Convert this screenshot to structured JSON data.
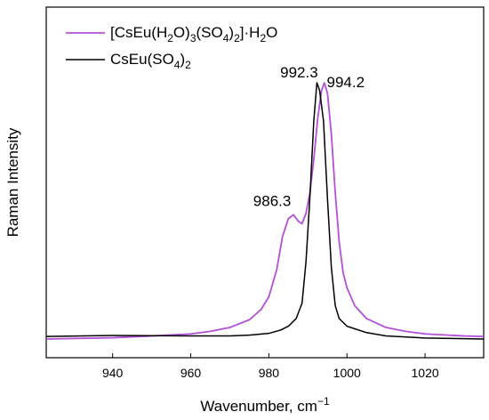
{
  "chart_data": {
    "type": "line",
    "xlabel": "Wavenumber, cm",
    "xlabel_sup": "−1",
    "ylabel": "Raman Intensity",
    "xlim": [
      923,
      1035
    ],
    "ylim": [
      0,
      1.05
    ],
    "xticks": [
      940,
      960,
      980,
      1000,
      1020
    ],
    "y_tick_labels": false,
    "legend_position": "top-left",
    "legend_rows": [
      {
        "series_index": 0,
        "parts": [
          {
            "t": "[CsEu(H"
          },
          {
            "t": "2",
            "s": "sub"
          },
          {
            "t": "O)"
          },
          {
            "t": "3",
            "s": "sub"
          },
          {
            "t": "(SO"
          },
          {
            "t": "4",
            "s": "sub"
          },
          {
            "t": ")"
          },
          {
            "t": "2",
            "s": "sub"
          },
          {
            "t": "]·H"
          },
          {
            "t": "2",
            "s": "sub"
          },
          {
            "t": "O"
          }
        ]
      },
      {
        "series_index": 1,
        "parts": [
          {
            "t": "CsEu(SO"
          },
          {
            "t": "4",
            "s": "sub"
          },
          {
            "t": ")"
          },
          {
            "t": "2",
            "s": "sub"
          }
        ]
      }
    ],
    "series": [
      {
        "name": "[CsEu(H2O)3(SO4)2]·H2O",
        "color": "#b44fd8",
        "points": [
          [
            923,
            0.0
          ],
          [
            940,
            0.005
          ],
          [
            950,
            0.012
          ],
          [
            960,
            0.02
          ],
          [
            965,
            0.03
          ],
          [
            970,
            0.045
          ],
          [
            975,
            0.075
          ],
          [
            978,
            0.115
          ],
          [
            980,
            0.165
          ],
          [
            982,
            0.27
          ],
          [
            983.5,
            0.4
          ],
          [
            985,
            0.47
          ],
          [
            986.3,
            0.485
          ],
          [
            987.5,
            0.46
          ],
          [
            988.5,
            0.45
          ],
          [
            989.5,
            0.49
          ],
          [
            990.5,
            0.57
          ],
          [
            991.5,
            0.7
          ],
          [
            992.5,
            0.86
          ],
          [
            993.5,
            0.97
          ],
          [
            994.2,
            1.0
          ],
          [
            995,
            0.96
          ],
          [
            996,
            0.8
          ],
          [
            997,
            0.57
          ],
          [
            998,
            0.38
          ],
          [
            999,
            0.26
          ],
          [
            1000,
            0.2
          ],
          [
            1002,
            0.13
          ],
          [
            1005,
            0.08
          ],
          [
            1010,
            0.045
          ],
          [
            1015,
            0.03
          ],
          [
            1020,
            0.02
          ],
          [
            1030,
            0.012
          ],
          [
            1035,
            0.01
          ]
        ]
      },
      {
        "name": "CsEu(SO4)2",
        "color": "#000000",
        "points": [
          [
            923,
            0.01
          ],
          [
            940,
            0.014
          ],
          [
            960,
            0.012
          ],
          [
            970,
            0.012
          ],
          [
            975,
            0.015
          ],
          [
            980,
            0.022
          ],
          [
            983,
            0.035
          ],
          [
            985,
            0.05
          ],
          [
            987,
            0.08
          ],
          [
            988.5,
            0.14
          ],
          [
            989.5,
            0.3
          ],
          [
            990.5,
            0.55
          ],
          [
            991.5,
            0.85
          ],
          [
            992.3,
            1.0
          ],
          [
            993,
            0.97
          ],
          [
            994,
            0.85
          ],
          [
            995,
            0.55
          ],
          [
            996,
            0.28
          ],
          [
            997,
            0.13
          ],
          [
            998,
            0.08
          ],
          [
            1000,
            0.05
          ],
          [
            1005,
            0.025
          ],
          [
            1010,
            0.012
          ],
          [
            1020,
            0.004
          ],
          [
            1035,
            0.0
          ]
        ]
      }
    ],
    "annotations": [
      {
        "text": "992.3",
        "x": 992.3,
        "y": 1.0
      },
      {
        "text": "994.2",
        "x": 994.2,
        "y": 1.0
      },
      {
        "text": "986.3",
        "x": 986.3,
        "y": 0.485
      }
    ]
  }
}
